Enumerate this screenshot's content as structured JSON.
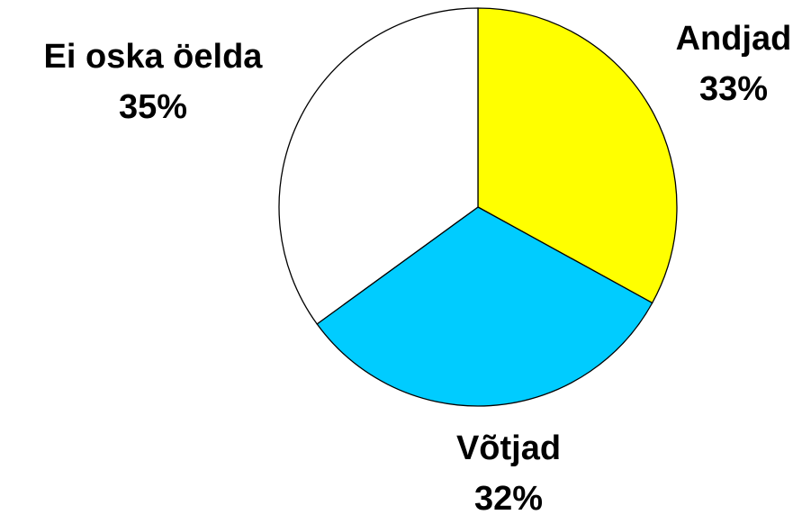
{
  "chart_data": {
    "type": "pie",
    "categories": [
      "Andjad",
      "Võtjad",
      "Ei oska öelda"
    ],
    "values": [
      33,
      32,
      35
    ],
    "value_labels": [
      "33%",
      "32%",
      "35%"
    ],
    "colors": [
      "#ffff00",
      "#00ccff",
      "#ffffff"
    ]
  }
}
